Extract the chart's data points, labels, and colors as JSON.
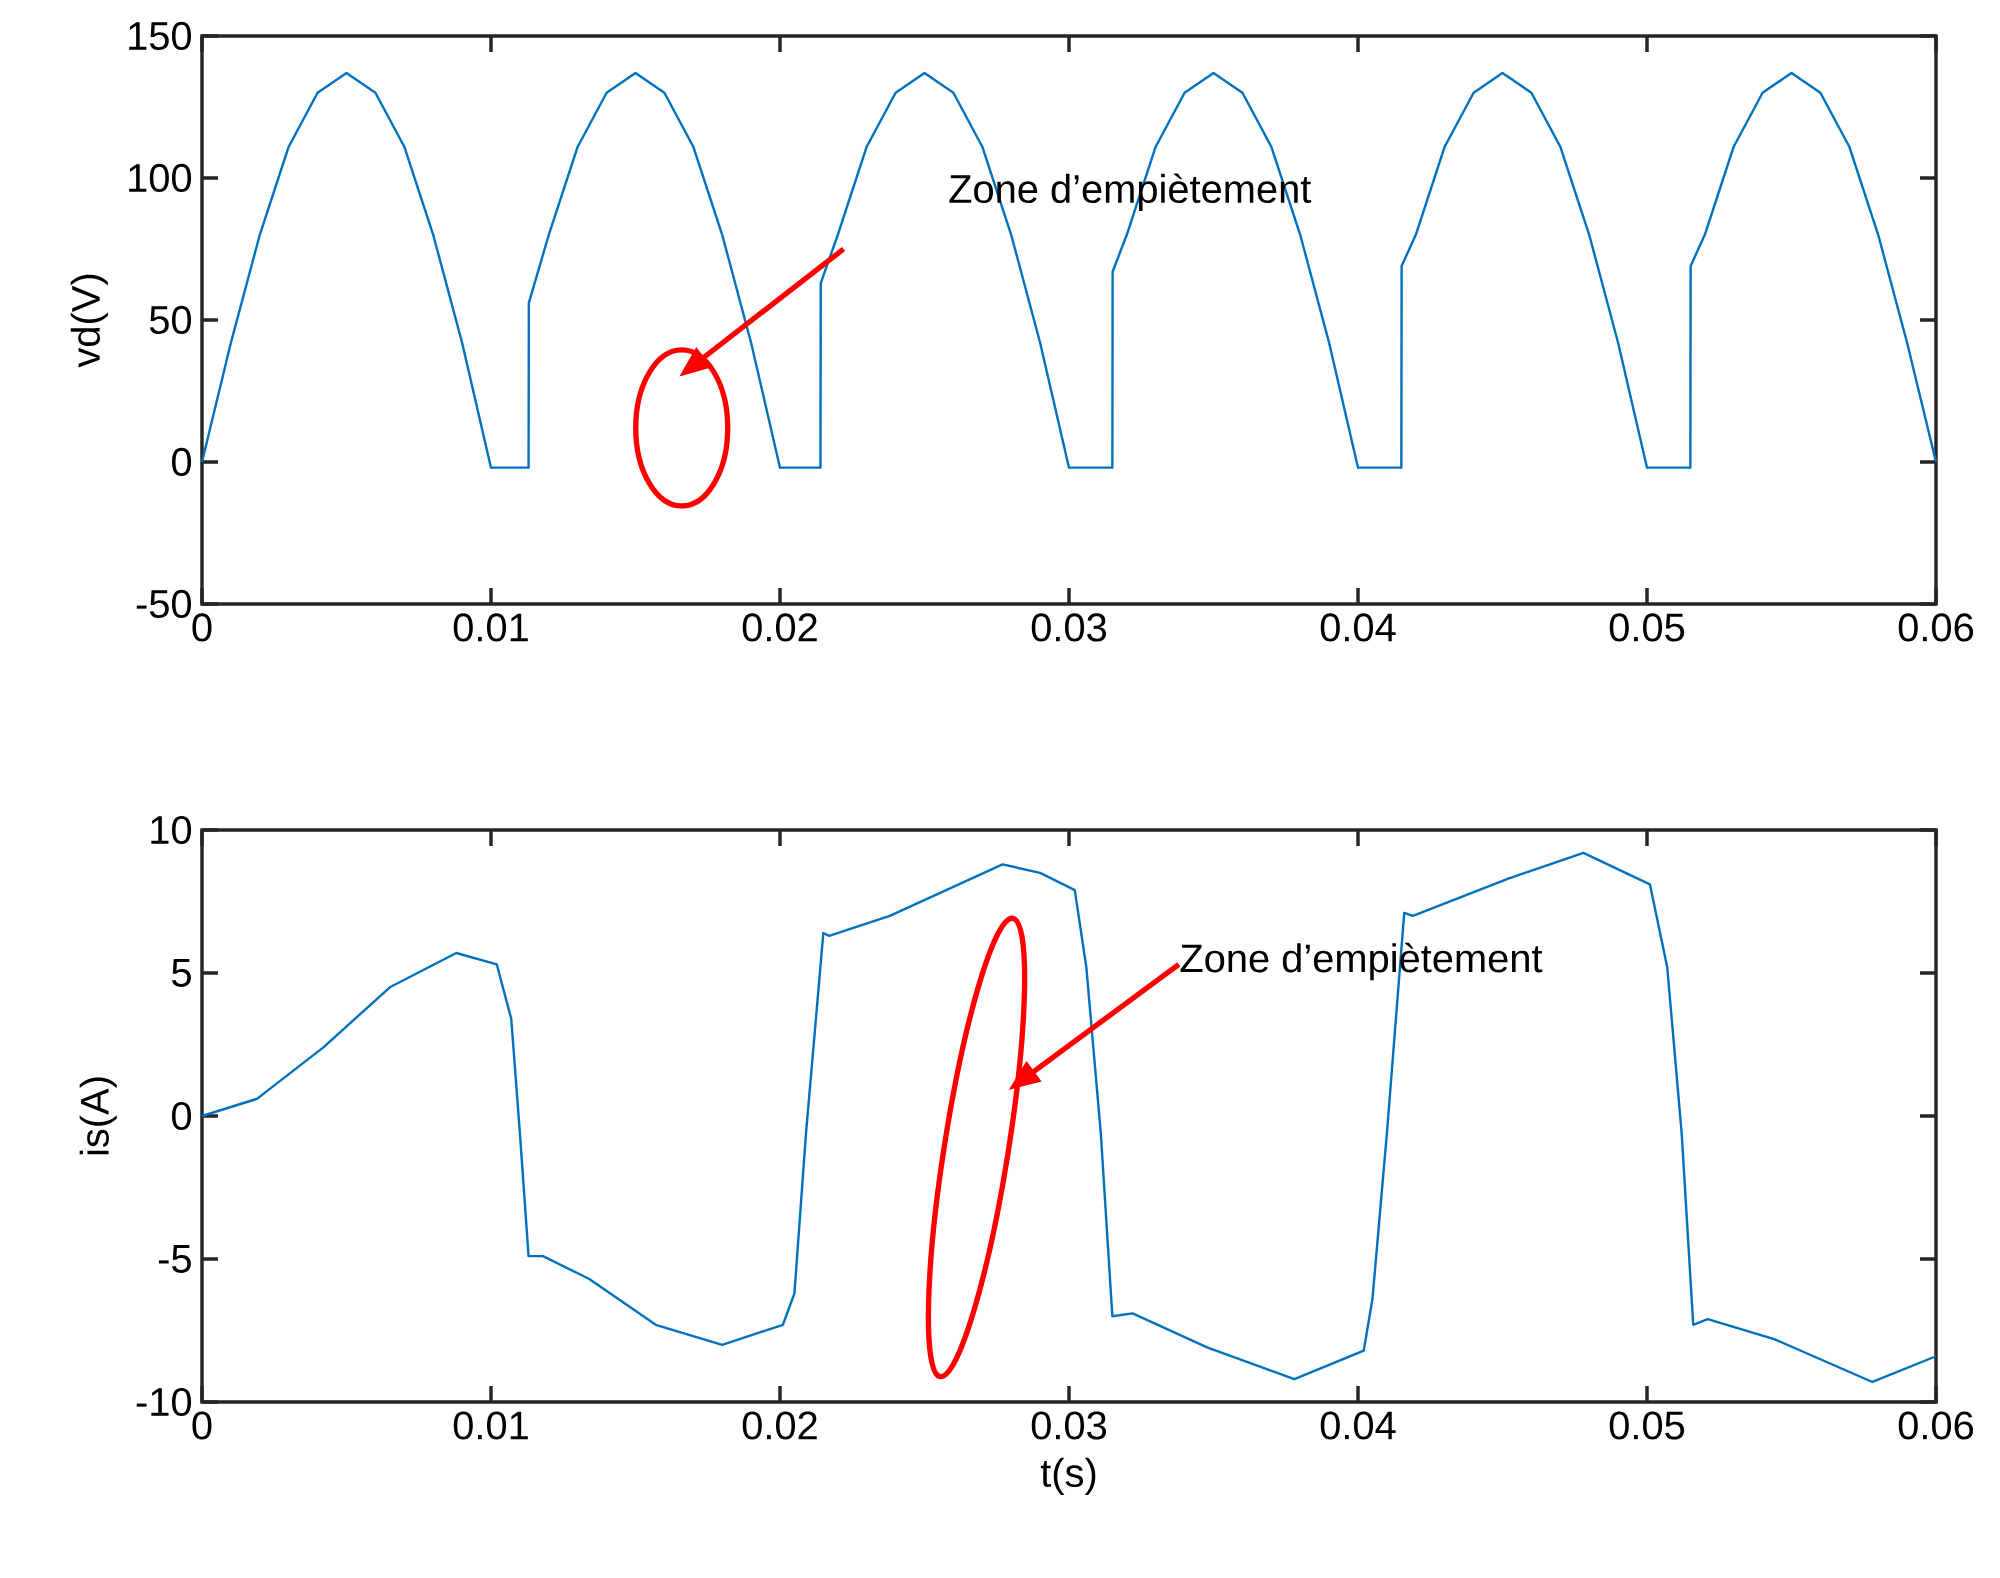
{
  "chart_data": [
    {
      "type": "line",
      "ylabel": "vd(V)",
      "color": "#0072bd",
      "xlim": [
        0,
        0.06
      ],
      "ylim": [
        -50,
        150
      ],
      "xticks": [
        0,
        0.01,
        0.02,
        0.03,
        0.04,
        0.05,
        0.06
      ],
      "yticks": [
        -50,
        0,
        50,
        100,
        150
      ],
      "annotations": [
        "Zone d’empiètement"
      ],
      "x": [
        0,
        0.001,
        0.002,
        0.003,
        0.004,
        0.005,
        0.006,
        0.007,
        0.008,
        0.009,
        0.01,
        0.0113,
        0.01131,
        0.012,
        0.013,
        0.014,
        0.015,
        0.016,
        0.017,
        0.018,
        0.019,
        0.02,
        0.0214,
        0.02141,
        0.022,
        0.023,
        0.024,
        0.025,
        0.026,
        0.027,
        0.028,
        0.029,
        0.03,
        0.0315,
        0.03151,
        0.032,
        0.033,
        0.034,
        0.035,
        0.036,
        0.037,
        0.038,
        0.039,
        0.04,
        0.0415,
        0.04151,
        0.042,
        0.043,
        0.044,
        0.045,
        0.046,
        0.047,
        0.048,
        0.049,
        0.05,
        0.0515,
        0.05151,
        0.052,
        0.053,
        0.054,
        0.055,
        0.056,
        0.057,
        0.058,
        0.059,
        0.06
      ],
      "values": [
        0,
        42,
        80,
        111,
        130,
        137,
        130,
        111,
        80,
        42,
        -2,
        -2,
        56,
        80,
        111,
        130,
        137,
        130,
        111,
        80,
        42,
        -2,
        -2,
        63,
        80,
        111,
        130,
        137,
        130,
        111,
        80,
        42,
        -2,
        -2,
        67,
        80,
        111,
        130,
        137,
        130,
        111,
        80,
        42,
        -2,
        -2,
        69,
        80,
        111,
        130,
        137,
        130,
        111,
        80,
        42,
        -2,
        -2,
        69,
        80,
        111,
        130,
        137,
        130,
        111,
        80,
        42,
        0
      ]
    },
    {
      "type": "line",
      "xlabel": "t(s)",
      "ylabel": "is(A)",
      "color": "#0072bd",
      "xlim": [
        0,
        0.06
      ],
      "ylim": [
        -10,
        10
      ],
      "xticks": [
        0,
        0.01,
        0.02,
        0.03,
        0.04,
        0.05,
        0.06
      ],
      "yticks": [
        -10,
        -5,
        0,
        5,
        10
      ],
      "annotations": [
        "Zone d’empiètement"
      ],
      "x": [
        0,
        0.0019,
        0.0042,
        0.0065,
        0.0088,
        0.0102,
        0.0107,
        0.011,
        0.0113,
        0.0118,
        0.0134,
        0.0157,
        0.018,
        0.0201,
        0.0205,
        0.0209,
        0.0215,
        0.0217,
        0.0238,
        0.0277,
        0.029,
        0.0302,
        0.0306,
        0.0311,
        0.0315,
        0.0322,
        0.0348,
        0.0378,
        0.0402,
        0.0405,
        0.041,
        0.0416,
        0.0419,
        0.0452,
        0.0478,
        0.0501,
        0.0507,
        0.0512,
        0.0516,
        0.0521,
        0.0544,
        0.0578,
        0.06
      ],
      "values": [
        0,
        0.6,
        2.4,
        4.5,
        5.7,
        5.3,
        3.4,
        -0.6,
        -4.9,
        -4.9,
        -5.7,
        -7.3,
        -8.0,
        -7.3,
        -6.2,
        -0.6,
        6.4,
        6.3,
        7.0,
        8.8,
        8.5,
        7.9,
        5.2,
        -0.6,
        -7.0,
        -6.9,
        -8.1,
        -9.2,
        -8.2,
        -6.4,
        -0.6,
        7.1,
        7.0,
        8.3,
        9.2,
        8.1,
        5.2,
        -0.6,
        -7.3,
        -7.1,
        -7.8,
        -9.3,
        -8.4
      ]
    }
  ]
}
